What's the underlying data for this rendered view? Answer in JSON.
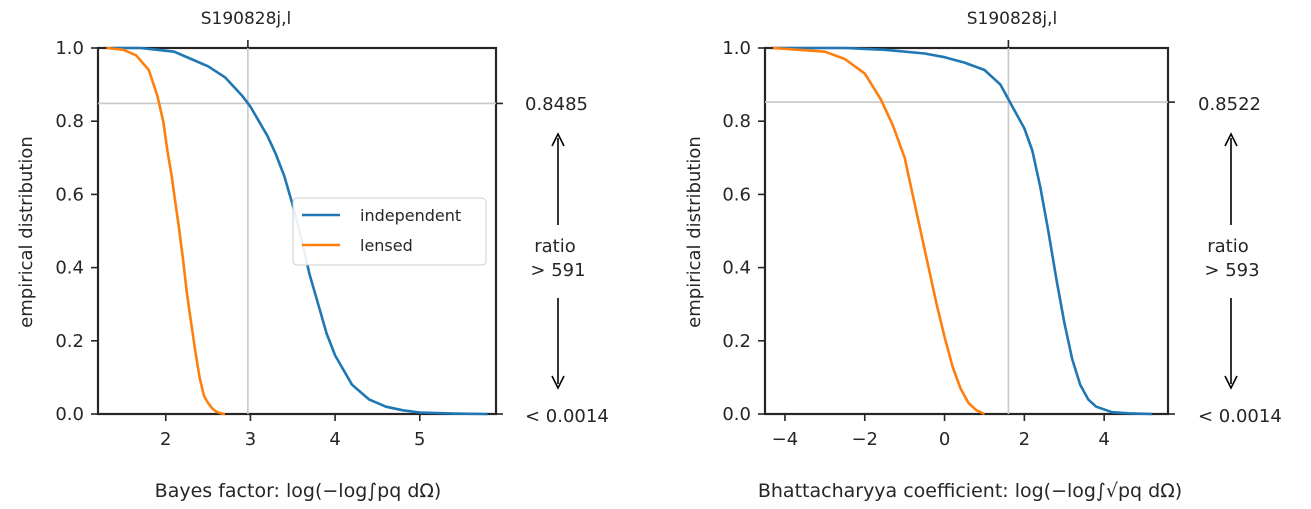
{
  "chart_data": [
    {
      "type": "line",
      "top_label": "S190828j,l",
      "xlabel": "Bayes factor: log(−log∫pq dΩ)",
      "ylabel": "empirical distribution",
      "xlim": [
        1.2,
        5.9
      ],
      "ylim": [
        0.0,
        1.0
      ],
      "xticks": [
        2,
        3,
        4,
        5
      ],
      "yticks": [
        0.0,
        0.2,
        0.4,
        0.6,
        0.8,
        1.0
      ],
      "ytick_labels": [
        "0.0",
        "0.2",
        "0.4",
        "0.6",
        "0.8",
        "1.0"
      ],
      "grid": false,
      "legend": {
        "position": "center-right",
        "entries": [
          "independent",
          "lensed"
        ]
      },
      "marker": {
        "x": 2.97,
        "y": 0.8485
      },
      "right_axis": {
        "top_label": "0.8485",
        "bottom_label": "< 0.0014",
        "ratio_label": "ratio",
        "ratio_value": "> 591"
      },
      "series": [
        {
          "name": "independent",
          "color": "#1f77b4",
          "x": [
            1.35,
            1.7,
            1.9,
            2.1,
            2.3,
            2.5,
            2.7,
            2.9,
            3.0,
            3.1,
            3.2,
            3.3,
            3.4,
            3.5,
            3.6,
            3.7,
            3.8,
            3.9,
            4.0,
            4.2,
            4.4,
            4.6,
            4.8,
            5.0,
            5.4,
            5.8
          ],
          "y": [
            1.0,
            1.0,
            0.995,
            0.99,
            0.97,
            0.95,
            0.92,
            0.87,
            0.84,
            0.8,
            0.76,
            0.71,
            0.65,
            0.57,
            0.48,
            0.38,
            0.3,
            0.22,
            0.16,
            0.08,
            0.04,
            0.02,
            0.01,
            0.004,
            0.001,
            0.0
          ]
        },
        {
          "name": "lensed",
          "color": "#ff7f0e",
          "x": [
            1.3,
            1.5,
            1.65,
            1.8,
            1.9,
            1.97,
            2.02,
            2.07,
            2.1,
            2.15,
            2.2,
            2.25,
            2.3,
            2.35,
            2.4,
            2.45,
            2.5,
            2.55,
            2.6,
            2.65,
            2.7
          ],
          "y": [
            1.0,
            0.995,
            0.98,
            0.94,
            0.87,
            0.8,
            0.72,
            0.65,
            0.6,
            0.52,
            0.43,
            0.33,
            0.25,
            0.17,
            0.1,
            0.05,
            0.03,
            0.015,
            0.006,
            0.002,
            0.0
          ]
        }
      ]
    },
    {
      "type": "line",
      "top_label": "S190828j,l",
      "xlabel": "Bhattacharyya coefficient: log(−log∫√pq dΩ)",
      "ylabel": "empirical distribution",
      "xlim": [
        -4.5,
        5.6
      ],
      "ylim": [
        0.0,
        1.0
      ],
      "xticks": [
        -4,
        -2,
        0,
        2,
        4
      ],
      "xtick_labels": [
        "−4",
        "−2",
        "0",
        "2",
        "4"
      ],
      "yticks": [
        0.0,
        0.2,
        0.4,
        0.6,
        0.8,
        1.0
      ],
      "ytick_labels": [
        "0.0",
        "0.2",
        "0.4",
        "0.6",
        "0.8",
        "1.0"
      ],
      "grid": false,
      "marker": {
        "x": 1.6,
        "y": 0.8522
      },
      "right_axis": {
        "top_label": "0.8522",
        "bottom_label": "< 0.0014",
        "ratio_label": "ratio",
        "ratio_value": "> 593"
      },
      "series": [
        {
          "name": "independent",
          "color": "#1f77b4",
          "x": [
            -4.3,
            -2.5,
            -1.5,
            -0.5,
            0.0,
            0.5,
            1.0,
            1.4,
            1.7,
            2.0,
            2.2,
            2.4,
            2.6,
            2.8,
            3.0,
            3.2,
            3.4,
            3.6,
            3.8,
            4.2,
            4.6,
            5.2
          ],
          "y": [
            1.0,
            1.0,
            0.995,
            0.985,
            0.975,
            0.96,
            0.94,
            0.9,
            0.84,
            0.78,
            0.72,
            0.62,
            0.5,
            0.37,
            0.25,
            0.15,
            0.08,
            0.04,
            0.02,
            0.005,
            0.002,
            0.0
          ]
        },
        {
          "name": "lensed",
          "color": "#ff7f0e",
          "x": [
            -4.3,
            -3.0,
            -2.5,
            -2.0,
            -1.6,
            -1.3,
            -1.0,
            -0.8,
            -0.6,
            -0.4,
            -0.2,
            0.0,
            0.2,
            0.4,
            0.6,
            0.8,
            1.0
          ],
          "y": [
            1.0,
            0.99,
            0.97,
            0.93,
            0.86,
            0.79,
            0.7,
            0.6,
            0.5,
            0.4,
            0.3,
            0.21,
            0.13,
            0.07,
            0.03,
            0.01,
            0.0
          ]
        }
      ]
    }
  ]
}
